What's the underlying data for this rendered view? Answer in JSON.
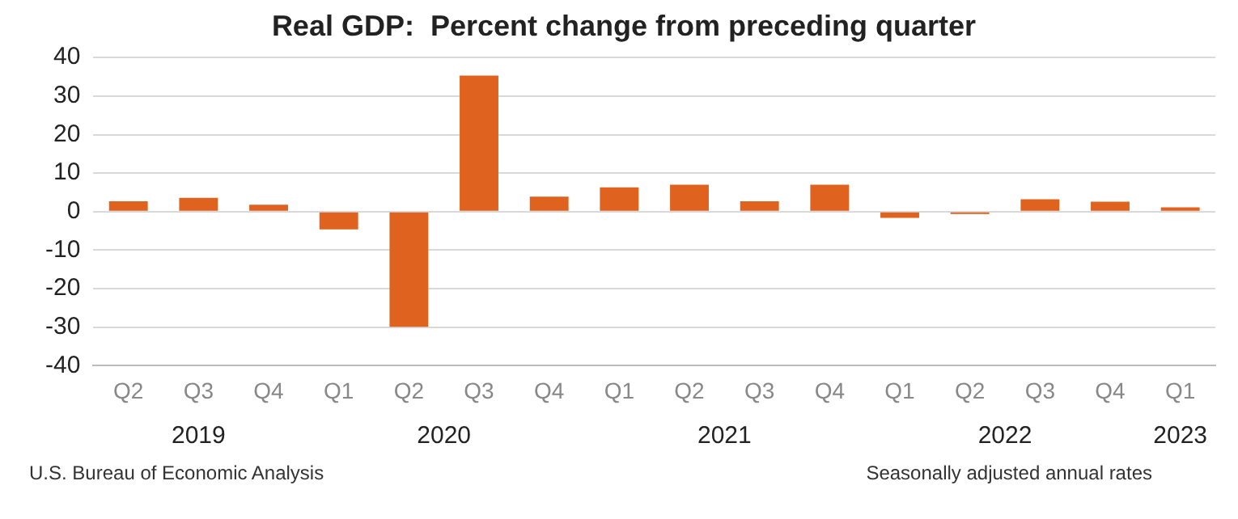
{
  "chart_data": {
    "type": "bar",
    "title": "Real GDP:  Percent change from preceding quarter",
    "categories": [
      "Q2",
      "Q3",
      "Q4",
      "Q1",
      "Q2",
      "Q3",
      "Q4",
      "Q1",
      "Q2",
      "Q3",
      "Q4",
      "Q1",
      "Q2",
      "Q3",
      "Q4",
      "Q1"
    ],
    "values": [
      2.7,
      3.6,
      1.8,
      -4.6,
      -29.9,
      35.3,
      3.9,
      6.3,
      7.0,
      2.7,
      7.0,
      -1.6,
      -0.6,
      3.2,
      2.6,
      1.1
    ],
    "color": "#e0621f",
    "ylim": [
      -40,
      40
    ],
    "yticks": [
      -40,
      -30,
      -20,
      -10,
      0,
      10,
      20,
      30,
      40
    ],
    "grid": "y",
    "annotations": [
      "2019",
      "2020",
      "2021",
      "2022",
      "2023",
      "U.S. Bureau of Economic Analysis",
      "Seasonally adjusted annual rates"
    ]
  }
}
